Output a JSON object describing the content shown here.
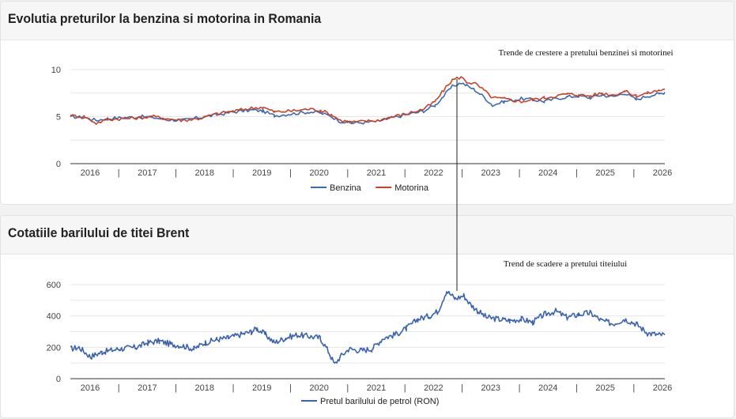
{
  "colors": {
    "benzina": "#3a6ab3",
    "motorina": "#c9422a",
    "brent": "#3a62b0"
  },
  "chart_data": [
    {
      "type": "line",
      "title": "Evolutia preturilor la benzina si motorina in Romania",
      "annotation": "Trende de crestere a pretului benzinei si motorinei",
      "x_tick_labels": [
        "2016",
        "|",
        "2017",
        "|",
        "2018",
        "|",
        "2019",
        "|",
        "2020",
        "|",
        "2021",
        "|",
        "2022",
        "|",
        "2023",
        "|",
        "2024",
        "|",
        "2025",
        "|",
        "2026"
      ],
      "xlim": [
        2015.65,
        2026.0
      ],
      "ylim": [
        0,
        10
      ],
      "y_ticks": [
        "0",
        "5",
        "10"
      ],
      "grid": true,
      "legend": "bottom",
      "series": [
        {
          "name": "Benzina",
          "x": [
            2015.65,
            2015.9,
            2016.1,
            2016.3,
            2016.6,
            2016.9,
            2017.1,
            2017.3,
            2017.6,
            2017.9,
            2018.2,
            2018.5,
            2018.8,
            2019.0,
            2019.2,
            2019.5,
            2019.8,
            2020.0,
            2020.2,
            2020.35,
            2020.55,
            2020.8,
            2021.0,
            2021.2,
            2021.5,
            2021.8,
            2022.0,
            2022.15,
            2022.3,
            2022.45,
            2022.55,
            2022.7,
            2022.85,
            2023.0,
            2023.2,
            2023.5,
            2023.7,
            2023.9,
            2024.1,
            2024.3,
            2024.5,
            2024.7,
            2024.9,
            2025.1,
            2025.3,
            2025.5,
            2025.7,
            2025.9,
            2026.0
          ],
          "values": [
            5.0,
            4.9,
            4.6,
            4.8,
            4.9,
            5.0,
            4.9,
            4.7,
            4.6,
            4.9,
            5.2,
            5.5,
            5.7,
            5.6,
            5.1,
            5.3,
            5.5,
            5.4,
            5.0,
            4.5,
            4.3,
            4.4,
            4.5,
            4.8,
            5.2,
            5.6,
            6.2,
            7.2,
            8.2,
            8.6,
            8.3,
            7.8,
            7.1,
            6.2,
            6.6,
            6.9,
            6.8,
            6.6,
            6.9,
            7.1,
            7.2,
            7.0,
            7.3,
            7.1,
            7.5,
            6.8,
            7.2,
            7.4,
            7.6
          ]
        },
        {
          "name": "Motorina",
          "x": [
            2015.65,
            2015.9,
            2016.1,
            2016.3,
            2016.6,
            2016.9,
            2017.1,
            2017.3,
            2017.6,
            2017.9,
            2018.2,
            2018.5,
            2018.8,
            2019.0,
            2019.2,
            2019.5,
            2019.8,
            2020.0,
            2020.2,
            2020.35,
            2020.55,
            2020.8,
            2021.0,
            2021.2,
            2021.5,
            2021.8,
            2022.0,
            2022.15,
            2022.3,
            2022.45,
            2022.55,
            2022.7,
            2022.85,
            2023.0,
            2023.2,
            2023.5,
            2023.7,
            2023.9,
            2024.1,
            2024.3,
            2024.5,
            2024.7,
            2024.9,
            2025.1,
            2025.3,
            2025.5,
            2025.7,
            2025.9,
            2026.0
          ],
          "values": [
            5.1,
            5.0,
            4.3,
            4.7,
            4.8,
            4.9,
            5.0,
            4.8,
            4.6,
            4.8,
            5.3,
            5.6,
            5.9,
            6.0,
            5.5,
            5.6,
            5.8,
            5.7,
            5.2,
            4.6,
            4.4,
            4.5,
            4.6,
            4.9,
            5.3,
            5.8,
            6.6,
            7.8,
            8.9,
            9.2,
            8.7,
            8.5,
            7.8,
            7.0,
            6.9,
            6.6,
            6.8,
            7.0,
            7.2,
            7.4,
            7.3,
            7.2,
            7.5,
            7.3,
            7.7,
            7.2,
            7.5,
            7.8,
            7.9
          ]
        }
      ]
    },
    {
      "type": "line",
      "title": "Cotatiile barilului de titei Brent",
      "annotation": "Trend de scadere a pretului titeiului",
      "x_tick_labels": [
        "2016",
        "|",
        "2017",
        "|",
        "2018",
        "|",
        "2019",
        "|",
        "2020",
        "|",
        "2021",
        "|",
        "2022",
        "|",
        "2023",
        "|",
        "2024",
        "|",
        "2025",
        "|",
        "2026"
      ],
      "xlim": [
        2015.65,
        2026.0
      ],
      "ylim": [
        0,
        600
      ],
      "y_ticks": [
        "0",
        "200",
        "400",
        "600"
      ],
      "grid": true,
      "legend": "bottom",
      "series": [
        {
          "name": "Pretul barilului de petrol (RON)",
          "x": [
            2015.65,
            2015.8,
            2016.0,
            2016.2,
            2016.5,
            2016.8,
            2017.0,
            2017.2,
            2017.4,
            2017.6,
            2017.8,
            2018.0,
            2018.2,
            2018.4,
            2018.6,
            2018.8,
            2018.9,
            2019.05,
            2019.2,
            2019.4,
            2019.6,
            2019.8,
            2020.0,
            2020.15,
            2020.25,
            2020.35,
            2020.5,
            2020.7,
            2020.9,
            2021.1,
            2021.3,
            2021.5,
            2021.7,
            2021.9,
            2022.05,
            2022.2,
            2022.35,
            2022.5,
            2022.6,
            2022.75,
            2022.9,
            2023.1,
            2023.3,
            2023.5,
            2023.7,
            2023.9,
            2024.1,
            2024.3,
            2024.5,
            2024.7,
            2024.9,
            2025.1,
            2025.3,
            2025.5,
            2025.7,
            2025.9,
            2026.0
          ],
          "values": [
            190,
            200,
            140,
            170,
            190,
            200,
            230,
            240,
            220,
            210,
            190,
            230,
            250,
            260,
            280,
            300,
            320,
            280,
            230,
            260,
            280,
            270,
            260,
            170,
            90,
            140,
            190,
            180,
            190,
            260,
            280,
            320,
            380,
            400,
            430,
            560,
            510,
            530,
            480,
            430,
            390,
            380,
            370,
            380,
            360,
            410,
            430,
            390,
            410,
            420,
            370,
            350,
            380,
            350,
            290,
            280,
            280
          ]
        }
      ]
    }
  ],
  "legend_labels": {
    "benzina": "Benzina",
    "motorina": "Motorina",
    "brent": "Pretul barilului de petrol (RON)"
  }
}
